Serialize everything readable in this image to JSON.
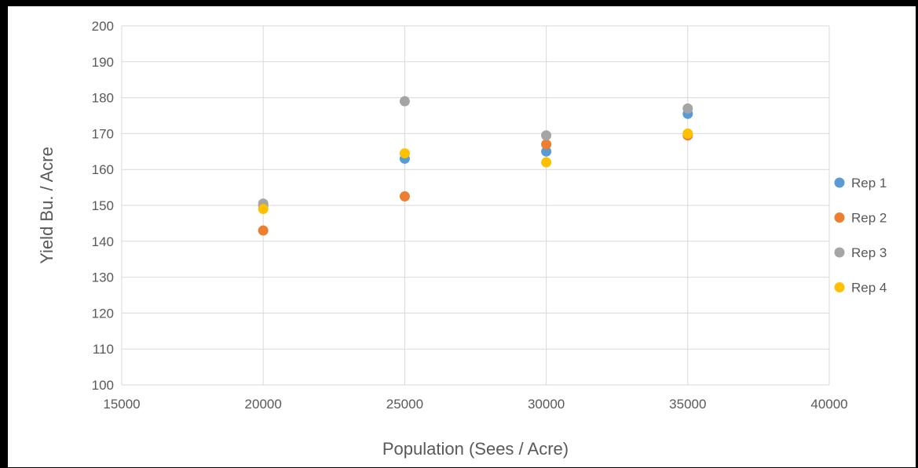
{
  "chart_data": {
    "type": "scatter",
    "title": "",
    "xlabel": "Population (Sees / Acre)",
    "ylabel": "Yield Bu. / Acre",
    "xlim": [
      15000,
      40000
    ],
    "ylim": [
      100,
      200
    ],
    "xticks": [
      15000,
      20000,
      25000,
      30000,
      35000,
      40000
    ],
    "yticks": [
      100,
      110,
      120,
      130,
      140,
      150,
      160,
      170,
      180,
      190,
      200
    ],
    "grid": true,
    "legend_position": "right",
    "series": [
      {
        "name": "Rep 1",
        "color": "#5B9BD5",
        "points": [
          [
            20000,
            150
          ],
          [
            25000,
            163
          ],
          [
            30000,
            165
          ],
          [
            35000,
            175.5
          ]
        ]
      },
      {
        "name": "Rep 2",
        "color": "#ED7D31",
        "points": [
          [
            20000,
            143
          ],
          [
            25000,
            152.5
          ],
          [
            30000,
            167
          ],
          [
            35000,
            169.5
          ]
        ]
      },
      {
        "name": "Rep 3",
        "color": "#A5A5A5",
        "points": [
          [
            20000,
            150.5
          ],
          [
            25000,
            179
          ],
          [
            30000,
            169.5
          ],
          [
            35000,
            177
          ]
        ]
      },
      {
        "name": "Rep 4",
        "color": "#FFC000",
        "points": [
          [
            20000,
            149
          ],
          [
            25000,
            164.5
          ],
          [
            30000,
            162
          ],
          [
            35000,
            170
          ]
        ]
      }
    ]
  }
}
